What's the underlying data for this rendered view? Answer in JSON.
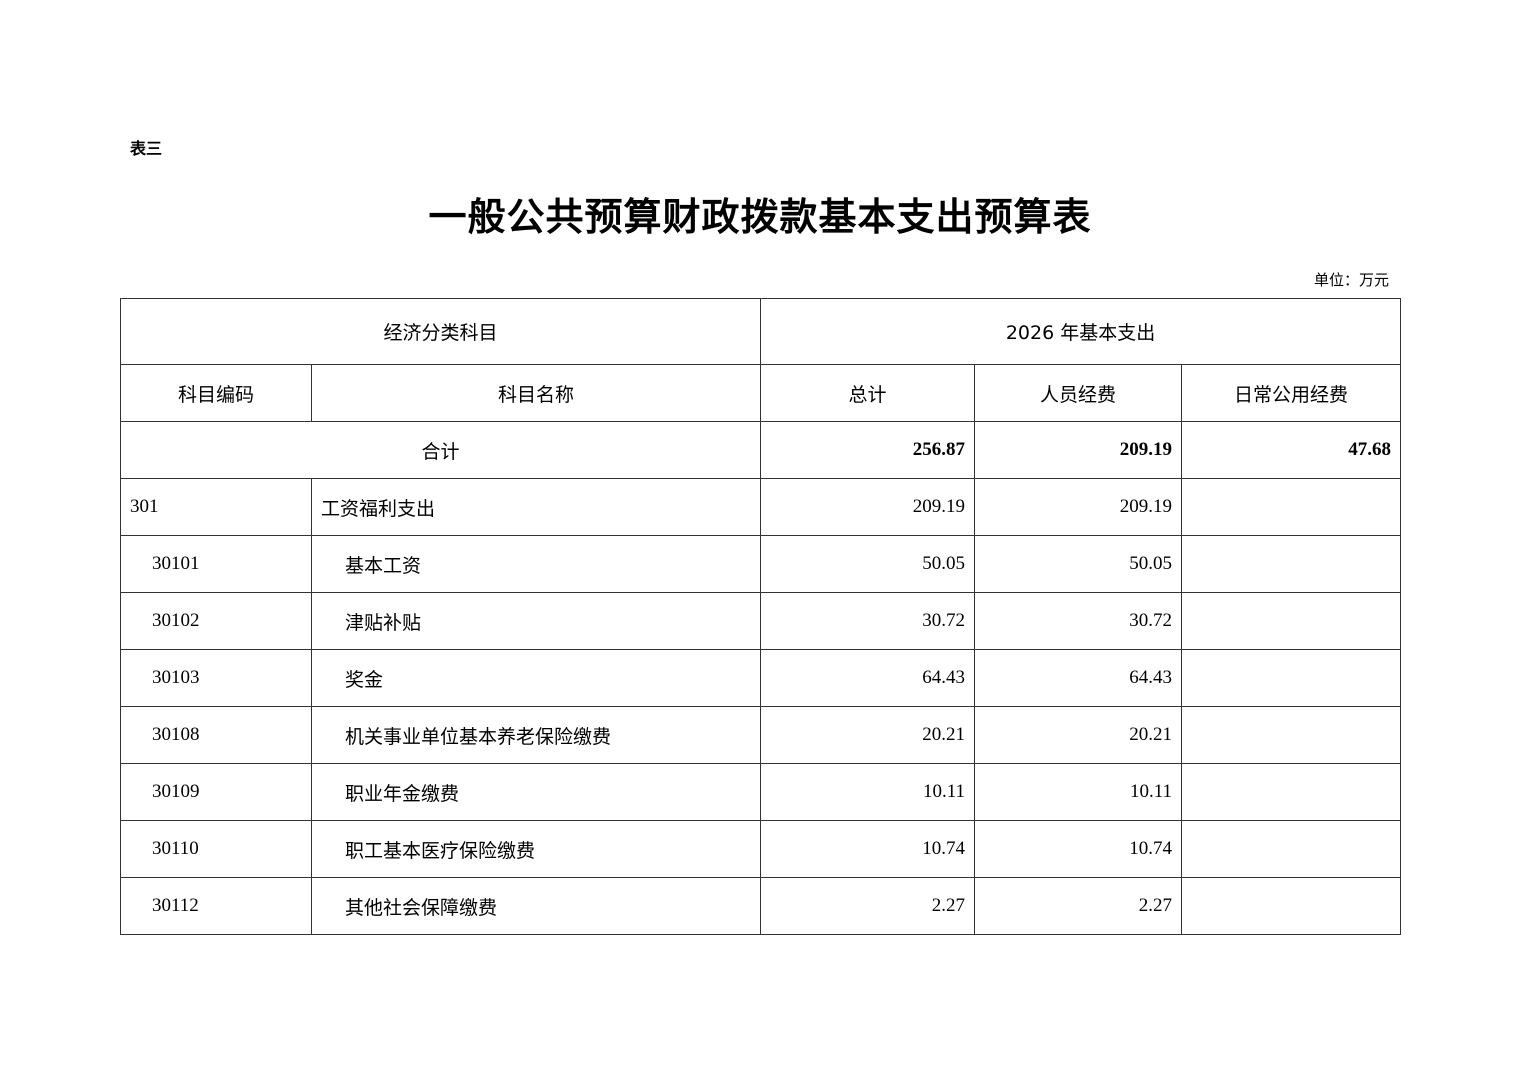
{
  "doc": {
    "label": "表三",
    "title": "一般公共预算财政拨款基本支出预算表",
    "unit": "单位：万元"
  },
  "table": {
    "group_headers": [
      "经济分类科目",
      "2026 年基本支出"
    ],
    "headers": [
      "科目编码",
      "科目名称",
      "总计",
      "人员经费",
      "日常公用经费"
    ],
    "total": {
      "label": "合计",
      "total": "256.87",
      "personnel": "209.19",
      "public": "47.68"
    },
    "rows": [
      {
        "code": "301",
        "name": "工资福利支出",
        "total": "209.19",
        "personnel": "209.19",
        "public": "",
        "level": 1
      },
      {
        "code": "30101",
        "name": "基本工资",
        "total": "50.05",
        "personnel": "50.05",
        "public": "",
        "level": 2
      },
      {
        "code": "30102",
        "name": "津贴补贴",
        "total": "30.72",
        "personnel": "30.72",
        "public": "",
        "level": 2
      },
      {
        "code": "30103",
        "name": "奖金",
        "total": "64.43",
        "personnel": "64.43",
        "public": "",
        "level": 2
      },
      {
        "code": "30108",
        "name": "机关事业单位基本养老保险缴费",
        "total": "20.21",
        "personnel": "20.21",
        "public": "",
        "level": 2
      },
      {
        "code": "30109",
        "name": "职业年金缴费",
        "total": "10.11",
        "personnel": "10.11",
        "public": "",
        "level": 2
      },
      {
        "code": "30110",
        "name": "职工基本医疗保险缴费",
        "total": "10.74",
        "personnel": "10.74",
        "public": "",
        "level": 2
      },
      {
        "code": "30112",
        "name": "其他社会保障缴费",
        "total": "2.27",
        "personnel": "2.27",
        "public": "",
        "level": 2
      }
    ]
  }
}
